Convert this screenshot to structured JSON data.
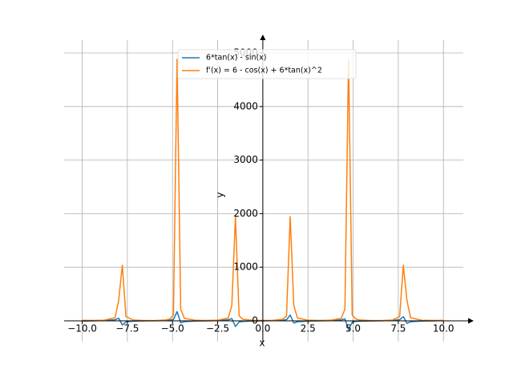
{
  "chart_data": {
    "type": "line",
    "x_label": "x",
    "y_label": "y",
    "x": [
      -10,
      -9.394,
      -8.788,
      -8.182,
      -7.98,
      -7.778,
      -7.576,
      -7.172,
      -6.566,
      -5.96,
      -5.354,
      -5.152,
      -4.949,
      -4.747,
      -4.545,
      -4.343,
      -3.737,
      -3.131,
      -2.525,
      -1.919,
      -1.717,
      -1.515,
      -1.313,
      -1.111,
      -0.505,
      0.505,
      1.111,
      1.313,
      1.515,
      1.717,
      1.919,
      2.525,
      3.131,
      3.737,
      4.343,
      4.545,
      4.747,
      4.949,
      5.152,
      5.354,
      5.96,
      6.566,
      7.172,
      7.576,
      7.778,
      7.98,
      8.182,
      8.788,
      9.394,
      10
    ],
    "series": [
      {
        "name": "6*tan(x) - sin(x)",
        "color": "#1f77b4",
        "values": [
          -4.43,
          0.216,
          5.03,
          18.35,
          48.4,
          -77.6,
          -20.0,
          -6.6,
          -1.47,
          1.69,
          7.24,
          11.9,
          23.9,
          170.1,
          -36.6,
          -16.35,
          -4.62,
          0.074,
          4.84,
          17.4,
          41.8,
          -106.8,
          -21.8,
          -11.2,
          -2.84,
          2.84,
          11.2,
          21.8,
          106.8,
          -41.8,
          -17.4,
          -4.84,
          -0.074,
          4.62,
          16.35,
          36.6,
          -170.1,
          -23.9,
          -11.9,
          -7.24,
          -1.69,
          1.47,
          6.6,
          20.0,
          77.6,
          -48.4,
          -18.35,
          -5.03,
          -0.216,
          4.43
        ]
      },
      {
        "name": "f'(x) = 6 - cos(x) + 6*tan(x)^2",
        "color": "#ff7f0e",
        "values": [
          9.36,
          7.0,
          10.08,
          56.8,
          380,
          1038,
          79.3,
          14.45,
          5.55,
          5.72,
          16.2,
          32.9,
          108.6,
          4882,
          217.3,
          45.96,
          9.58,
          7.0,
          9.84,
          51.3,
          283.7,
          1944,
          92.4,
          30.0,
          6.96,
          6.96,
          30.0,
          92.4,
          1944,
          283.7,
          51.3,
          9.84,
          7.0,
          9.58,
          45.96,
          217.3,
          4882,
          108.6,
          32.9,
          16.2,
          5.72,
          5.55,
          14.45,
          79.3,
          1038,
          380,
          56.8,
          10.08,
          7.0,
          9.36
        ]
      }
    ],
    "xlim": [
      -11,
      11.1
    ],
    "ylim": [
      -390,
      5240
    ],
    "xticks": [
      {
        "value": -10,
        "label": "−10.0"
      },
      {
        "value": -7.5,
        "label": "−7.5"
      },
      {
        "value": -5,
        "label": "−5.0"
      },
      {
        "value": -2.5,
        "label": "−2.5"
      },
      {
        "value": 0,
        "label": "0.0"
      },
      {
        "value": 2.5,
        "label": "2.5"
      },
      {
        "value": 5,
        "label": "5.0"
      },
      {
        "value": 7.5,
        "label": "7.5"
      },
      {
        "value": 10,
        "label": "10.0"
      }
    ],
    "yticks": [
      0,
      1000,
      2000,
      3000,
      4000,
      5000
    ],
    "grid": true,
    "legend": "upper-center"
  }
}
